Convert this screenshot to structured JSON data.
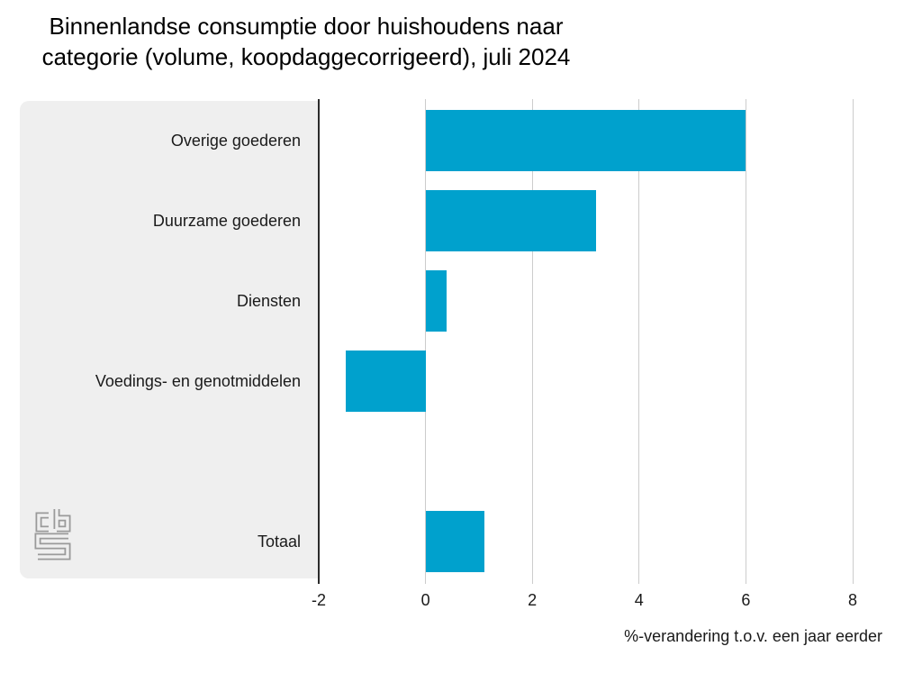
{
  "title": {
    "line1": "Binnenlandse consumptie door huishoudens naar",
    "line2": "categorie (volume, koopdaggecorrigeerd), juli 2024"
  },
  "chart_data": {
    "type": "bar",
    "orientation": "horizontal",
    "title": "Binnenlandse consumptie door huishoudens naar categorie (volume, koopdaggecorrigeerd), juli 2024",
    "categories": [
      "Overige goederen",
      "Duurzame goederen",
      "Diensten",
      "Voedings- en genotmiddelen",
      "Totaal"
    ],
    "values": [
      6.0,
      3.2,
      0.4,
      -1.5,
      1.1
    ],
    "xlabel": "%-verandering t.o.v. een jaar eerder",
    "x_ticks": [
      -2,
      0,
      2,
      4,
      6,
      8
    ],
    "xlim": [
      -2,
      9.1
    ],
    "grid": true,
    "legend": false,
    "last_row_separated": true
  },
  "branding": {
    "logo_name": "cbs-logo"
  },
  "colors": {
    "bar": "#00a1cd",
    "panel": "#efefef",
    "grid": "#cccccc",
    "axis": "#2b2b2b",
    "logo": "#9a9a9a",
    "text": "#1a1a1a"
  }
}
